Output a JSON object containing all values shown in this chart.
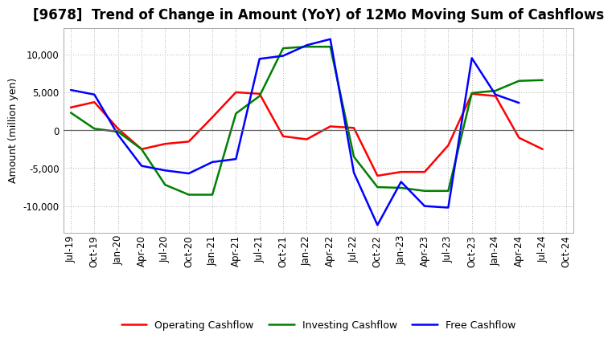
{
  "title": "[9678]  Trend of Change in Amount (YoY) of 12Mo Moving Sum of Cashflows",
  "ylabel": "Amount (million yen)",
  "x_labels": [
    "Jul-19",
    "Oct-19",
    "Jan-20",
    "Apr-20",
    "Jul-20",
    "Oct-20",
    "Jan-21",
    "Apr-21",
    "Jul-21",
    "Oct-21",
    "Jan-22",
    "Apr-22",
    "Jul-22",
    "Oct-22",
    "Jan-23",
    "Apr-23",
    "Jul-23",
    "Oct-23",
    "Jan-24",
    "Apr-24",
    "Jul-24",
    "Oct-24"
  ],
  "operating_cashflow": [
    3000,
    3700,
    200,
    -2500,
    -1800,
    -1500,
    1700,
    5000,
    4800,
    -800,
    -1200,
    500,
    300,
    -6000,
    -5500,
    -5500,
    -2000,
    4800,
    4500,
    -1000,
    -2500,
    null
  ],
  "investing_cashflow": [
    2300,
    200,
    -200,
    -2500,
    -7200,
    -8500,
    -8500,
    2200,
    4500,
    10800,
    11000,
    11000,
    -3500,
    -7500,
    -7600,
    -8000,
    -8000,
    4900,
    5200,
    6500,
    6600,
    null
  ],
  "free_cashflow": [
    5300,
    4700,
    -600,
    -4700,
    -5300,
    -5700,
    -4200,
    -3800,
    9400,
    9800,
    11200,
    12000,
    -5600,
    -12500,
    -6800,
    -10000,
    -10200,
    9500,
    4700,
    3600,
    null,
    null
  ],
  "operating_color": "#ff0000",
  "investing_color": "#008000",
  "free_color": "#0000ff",
  "background_color": "#ffffff",
  "grid_color": "#b0b0b0",
  "ylim": [
    -13500,
    13500
  ],
  "yticks": [
    -10000,
    -5000,
    0,
    5000,
    10000
  ],
  "linewidth": 1.8,
  "title_fontsize": 12,
  "axis_fontsize": 9,
  "tick_fontsize": 8.5,
  "legend_fontsize": 9
}
